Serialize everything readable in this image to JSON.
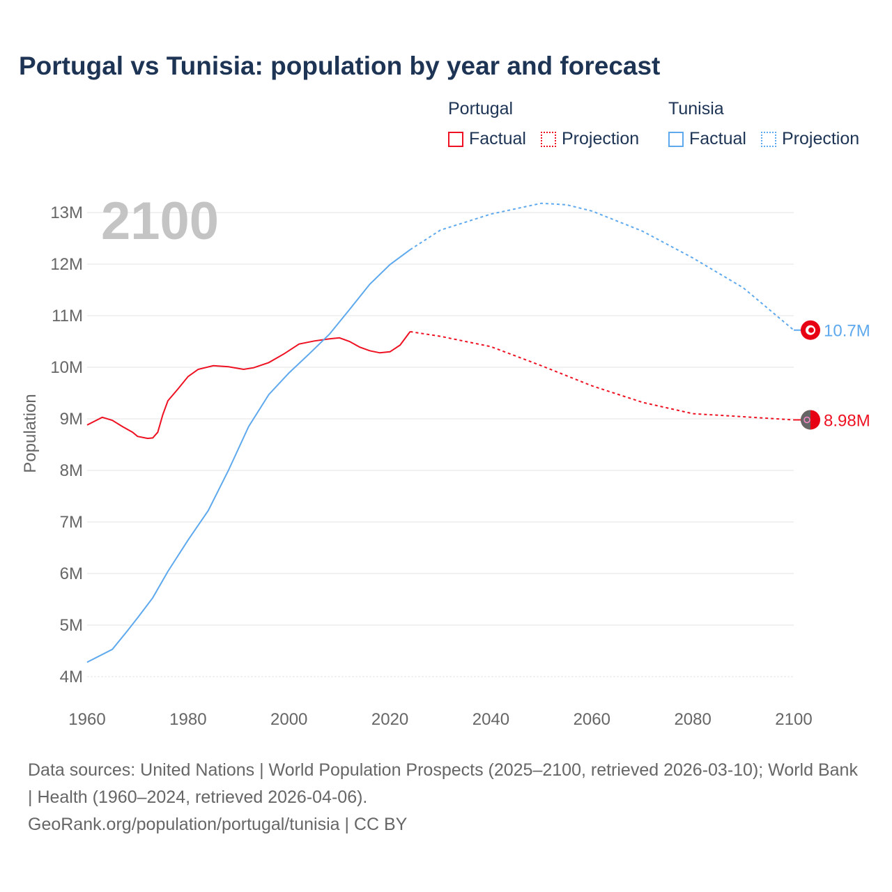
{
  "chart_data": {
    "type": "line",
    "title": "Portugal vs Tunisia: population by year and forecast",
    "ylabel": "Population",
    "xlabel": "",
    "current_year_label": "2100",
    "xlim": [
      1960,
      2100
    ],
    "ylim": [
      4,
      13
    ],
    "x_ticks": [
      "1960",
      "1980",
      "2000",
      "2020",
      "2040",
      "2060",
      "2080",
      "2100"
    ],
    "y_ticks": [
      "4M",
      "5M",
      "6M",
      "7M",
      "8M",
      "9M",
      "10M",
      "11M",
      "12M",
      "13M"
    ],
    "grid": true,
    "legend": {
      "placement": "top-right",
      "groups": [
        {
          "name": "Portugal",
          "factual": "Factual",
          "projection": "Projection"
        },
        {
          "name": "Tunisia",
          "factual": "Factual",
          "projection": "Projection"
        }
      ]
    },
    "series": [
      {
        "name": "Portugal",
        "color": "#ee1122",
        "end_label": "8.98M",
        "factual": [
          [
            1960,
            8.88
          ],
          [
            1963,
            9.03
          ],
          [
            1965,
            8.97
          ],
          [
            1967,
            8.85
          ],
          [
            1969,
            8.74
          ],
          [
            1970,
            8.66
          ],
          [
            1972,
            8.62
          ],
          [
            1973,
            8.63
          ],
          [
            1974,
            8.74
          ],
          [
            1975,
            9.08
          ],
          [
            1976,
            9.35
          ],
          [
            1978,
            9.58
          ],
          [
            1980,
            9.82
          ],
          [
            1982,
            9.96
          ],
          [
            1985,
            10.03
          ],
          [
            1988,
            10.01
          ],
          [
            1991,
            9.96
          ],
          [
            1993,
            9.99
          ],
          [
            1996,
            10.09
          ],
          [
            1999,
            10.26
          ],
          [
            2002,
            10.45
          ],
          [
            2005,
            10.51
          ],
          [
            2008,
            10.55
          ],
          [
            2010,
            10.57
          ],
          [
            2012,
            10.5
          ],
          [
            2014,
            10.39
          ],
          [
            2016,
            10.32
          ],
          [
            2018,
            10.28
          ],
          [
            2020,
            10.3
          ],
          [
            2022,
            10.43
          ],
          [
            2024,
            10.69
          ]
        ],
        "projection": [
          [
            2024,
            10.69
          ],
          [
            2030,
            10.6
          ],
          [
            2040,
            10.4
          ],
          [
            2050,
            10.03
          ],
          [
            2060,
            9.64
          ],
          [
            2070,
            9.32
          ],
          [
            2080,
            9.1
          ],
          [
            2090,
            9.04
          ],
          [
            2100,
            8.98
          ]
        ]
      },
      {
        "name": "Tunisia",
        "color": "#5ea9ee",
        "end_label": "10.7M",
        "factual": [
          [
            1960,
            4.28
          ],
          [
            1965,
            4.53
          ],
          [
            1968,
            4.89
          ],
          [
            1970,
            5.14
          ],
          [
            1973,
            5.53
          ],
          [
            1976,
            6.04
          ],
          [
            1980,
            6.65
          ],
          [
            1984,
            7.22
          ],
          [
            1988,
            8.0
          ],
          [
            1992,
            8.85
          ],
          [
            1996,
            9.47
          ],
          [
            2000,
            9.89
          ],
          [
            2004,
            10.26
          ],
          [
            2008,
            10.64
          ],
          [
            2012,
            11.12
          ],
          [
            2016,
            11.61
          ],
          [
            2020,
            11.99
          ],
          [
            2024,
            12.28
          ]
        ],
        "projection": [
          [
            2024,
            12.28
          ],
          [
            2030,
            12.66
          ],
          [
            2040,
            12.97
          ],
          [
            2050,
            13.18
          ],
          [
            2055,
            13.15
          ],
          [
            2060,
            13.03
          ],
          [
            2070,
            12.64
          ],
          [
            2080,
            12.12
          ],
          [
            2090,
            11.54
          ],
          [
            2100,
            10.72
          ]
        ]
      }
    ]
  },
  "footer": {
    "sources": "Data sources: United Nations | World Population Prospects (2025–2100, retrieved 2026-03-10); World Bank | Health (1960–2024, retrieved 2026-04-06).",
    "credit": "GeoRank.org/population/portugal/tunisia | CC BY"
  }
}
